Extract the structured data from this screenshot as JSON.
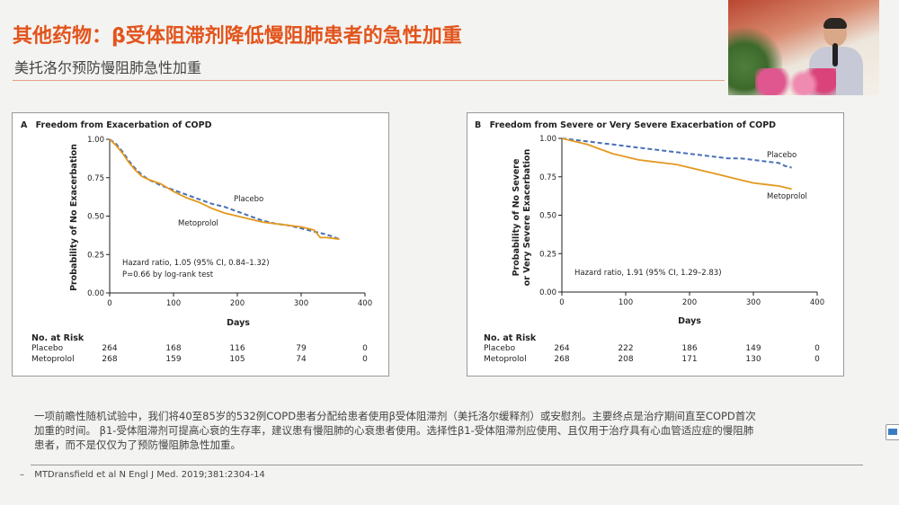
{
  "header": {
    "title": "其他药物：β受体阻滞剂降低慢阻肺患者的急性加重",
    "subtitle": "美托洛尔预防慢阻肺急性加重"
  },
  "colors": {
    "title": "#e2541c",
    "placebo": "#4a6fb5",
    "metoprolol": "#e3991f"
  },
  "chart_data": [
    {
      "type": "line",
      "panel_letter": "A",
      "title": "Freedom from Exacerbation of COPD",
      "xlabel": "Days",
      "ylabel": "Probability of No Exacerbation",
      "xlim": [
        0,
        400
      ],
      "ylim": [
        0,
        1.0
      ],
      "xticks": [
        "0",
        "100",
        "200",
        "300",
        "400"
      ],
      "yticks": [
        "0.00",
        "0.25",
        "0.50",
        "0.75",
        "1.00"
      ],
      "grid": false,
      "series": [
        {
          "name": "Placebo",
          "style": "dashed",
          "x": [
            0,
            10,
            20,
            30,
            40,
            50,
            60,
            80,
            100,
            120,
            140,
            160,
            180,
            200,
            220,
            240,
            260,
            280,
            300,
            320,
            340,
            360
          ],
          "y": [
            1.0,
            0.97,
            0.92,
            0.86,
            0.81,
            0.77,
            0.74,
            0.7,
            0.67,
            0.64,
            0.61,
            0.58,
            0.56,
            0.53,
            0.5,
            0.47,
            0.45,
            0.44,
            0.42,
            0.4,
            0.38,
            0.35
          ]
        },
        {
          "name": "Metoprolol",
          "style": "solid",
          "x": [
            0,
            10,
            20,
            30,
            40,
            50,
            60,
            80,
            100,
            120,
            140,
            160,
            180,
            200,
            220,
            240,
            260,
            280,
            300,
            320,
            330,
            340,
            360
          ],
          "y": [
            1.0,
            0.96,
            0.91,
            0.85,
            0.8,
            0.76,
            0.74,
            0.71,
            0.66,
            0.62,
            0.59,
            0.55,
            0.52,
            0.5,
            0.48,
            0.46,
            0.45,
            0.44,
            0.43,
            0.41,
            0.36,
            0.36,
            0.35
          ]
        }
      ],
      "annotations": [
        "Hazard ratio, 1.05 (95% CI, 0.84–1.32)",
        "P=0.66 by log-rank test"
      ],
      "risk_table": {
        "header": "No. at Risk",
        "rows": [
          {
            "label": "Placebo",
            "values": [
              "264",
              "168",
              "116",
              "79",
              "0"
            ]
          },
          {
            "label": "Metoprolol",
            "values": [
              "268",
              "159",
              "105",
              "74",
              "0"
            ]
          }
        ]
      }
    },
    {
      "type": "line",
      "panel_letter": "B",
      "title": "Freedom from Severe or Very Severe Exacerbation of COPD",
      "xlabel": "Days",
      "ylabel": [
        "Probability of No Severe",
        "or Very Severe Exacerbation"
      ],
      "xlim": [
        0,
        400
      ],
      "ylim": [
        0,
        1.0
      ],
      "xticks": [
        "0",
        "100",
        "200",
        "300",
        "400"
      ],
      "yticks": [
        "0.00",
        "0.25",
        "0.50",
        "0.75",
        "1.00"
      ],
      "grid": false,
      "series": [
        {
          "name": "Placebo",
          "style": "dashed",
          "x": [
            0,
            20,
            40,
            60,
            80,
            100,
            120,
            140,
            160,
            180,
            200,
            220,
            240,
            260,
            280,
            300,
            320,
            340,
            350,
            360
          ],
          "y": [
            1.0,
            0.99,
            0.98,
            0.97,
            0.96,
            0.95,
            0.94,
            0.93,
            0.92,
            0.91,
            0.9,
            0.89,
            0.88,
            0.87,
            0.87,
            0.86,
            0.85,
            0.84,
            0.82,
            0.81
          ]
        },
        {
          "name": "Metoprolol",
          "style": "solid",
          "x": [
            0,
            20,
            40,
            60,
            80,
            100,
            120,
            140,
            160,
            180,
            200,
            220,
            240,
            260,
            280,
            300,
            320,
            340,
            360
          ],
          "y": [
            1.0,
            0.98,
            0.96,
            0.93,
            0.9,
            0.88,
            0.86,
            0.85,
            0.84,
            0.83,
            0.81,
            0.79,
            0.77,
            0.75,
            0.73,
            0.71,
            0.7,
            0.69,
            0.67
          ]
        }
      ],
      "annotations": [
        "Hazard ratio, 1.91 (95% CI, 1.29–2.83)"
      ],
      "risk_table": {
        "header": "No. at Risk",
        "rows": [
          {
            "label": "Placebo",
            "values": [
              "264",
              "222",
              "186",
              "149",
              "0"
            ]
          },
          {
            "label": "Metoprolol",
            "values": [
              "268",
              "208",
              "171",
              "130",
              "0"
            ]
          }
        ]
      }
    }
  ],
  "body": {
    "description_lines": [
      "一项前瞻性随机试验中，我们将40至85岁的532例COPD患者分配给患者使用β受体阻滞剂（美托洛尔缓释剂）或安慰剂。主要终点是治疗期间直至COPD首次",
      "加重的时间。 β1-受体阻滞剂可提高心衰的生存率，建议患有慢阻肺的心衰患者使用。选择性β1-受体阻滞剂应使用、且仅用于治疗具有心血管适应症的慢阻肺",
      "患者，而不是仅仅为了预防慢阻肺急性加重。"
    ],
    "reference_bullet": "–",
    "reference": "MTDransfield et al N Engl J Med. 2019;381:2304-14"
  }
}
